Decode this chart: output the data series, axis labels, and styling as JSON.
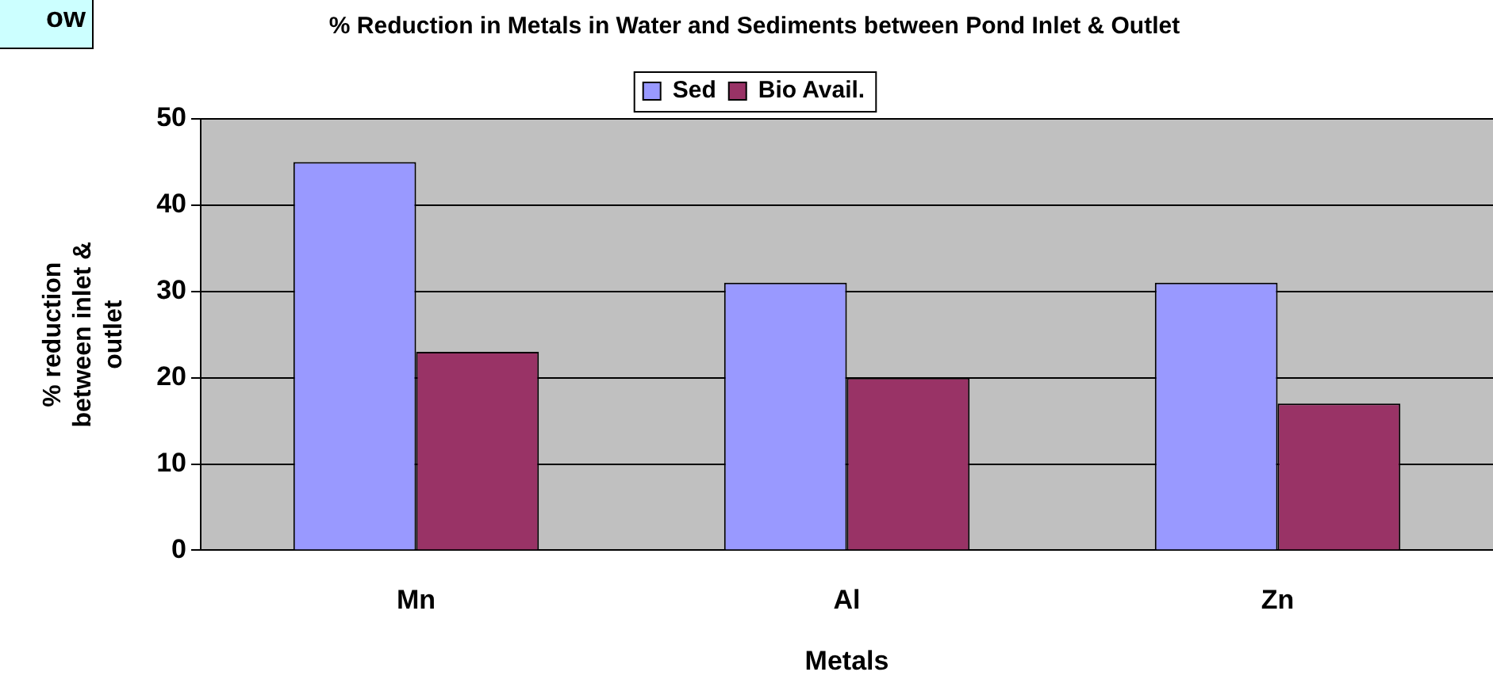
{
  "chart_data": {
    "type": "bar",
    "title": "% Reduction in Metals in Water and Sediments between Pond Inlet & Outlet",
    "xlabel": "Metals",
    "ylabel": "% reduction between inlet & outlet",
    "categories": [
      "Mn",
      "Al",
      "Zn"
    ],
    "series": [
      {
        "name": "Sed",
        "color": "#9999ff",
        "values": [
          45,
          31,
          31
        ]
      },
      {
        "name": "Bio Avail.",
        "color": "#993366",
        "values": [
          23,
          20,
          17
        ]
      }
    ],
    "ylim": [
      0,
      50
    ],
    "yticks": [
      0,
      10,
      20,
      30,
      40,
      50
    ],
    "grid": "y",
    "legend": "top",
    "annotations": [
      "ow"
    ]
  }
}
